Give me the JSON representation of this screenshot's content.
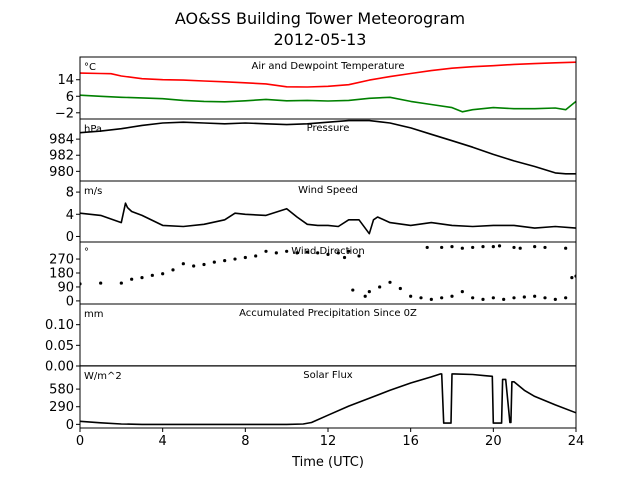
{
  "figure": {
    "title": "AO&SS Building Tower Meteorogram",
    "subtitle": "2012-05-13",
    "xlabel": "Time (UTC)",
    "xticks": [
      0,
      4,
      8,
      12,
      16,
      20,
      24
    ]
  },
  "chart_data": [
    {
      "type": "line",
      "title": "Air and Dewpoint Temperature",
      "unit": "°C",
      "xlim": [
        0,
        24
      ],
      "ylim": [
        -5,
        25
      ],
      "yticks": [
        -2,
        6,
        14
      ],
      "series": [
        {
          "color": "#ff0000",
          "x": [
            0,
            1,
            1.5,
            2,
            3,
            4,
            5,
            6,
            7,
            8,
            9,
            10,
            11,
            12,
            13,
            14,
            15,
            16,
            17,
            18,
            19,
            20,
            21,
            22,
            23,
            24
          ],
          "values": [
            17.2,
            17.0,
            16.9,
            15.8,
            14.5,
            14.0,
            13.8,
            13.4,
            13.0,
            12.5,
            12.0,
            10.6,
            10.5,
            10.8,
            11.6,
            13.8,
            15.5,
            17.0,
            18.4,
            19.6,
            20.3,
            20.8,
            21.4,
            21.8,
            22.2,
            22.5
          ]
        },
        {
          "color": "#008000",
          "x": [
            0,
            1,
            2,
            3,
            4,
            5,
            6,
            7,
            8,
            9,
            10,
            11,
            12,
            13,
            14,
            15,
            16,
            17,
            18,
            18.5,
            19,
            20,
            21,
            22,
            23,
            23.5,
            24
          ],
          "values": [
            6.5,
            6.0,
            5.5,
            5.2,
            4.8,
            4.0,
            3.5,
            3.3,
            3.8,
            4.5,
            3.8,
            4.0,
            3.7,
            4.0,
            5.0,
            5.5,
            3.5,
            2.0,
            0.5,
            -1.5,
            -0.5,
            0.5,
            0.0,
            0.0,
            0.3,
            -0.5,
            3.5
          ]
        }
      ]
    },
    {
      "type": "line",
      "title": "Pressure",
      "unit": "hPa",
      "xlim": [
        0,
        24
      ],
      "ylim": [
        978.8,
        986.5
      ],
      "yticks": [
        980,
        982,
        984
      ],
      "series": [
        {
          "color": "#000000",
          "x": [
            0,
            1,
            2,
            3,
            4,
            5,
            6,
            7,
            8,
            9,
            10,
            11,
            12,
            13,
            14,
            15,
            16,
            17,
            18,
            19,
            20,
            21,
            22,
            23,
            23.5,
            24
          ],
          "values": [
            984.8,
            985.0,
            985.3,
            985.7,
            986.0,
            986.1,
            986.0,
            985.9,
            986.0,
            985.9,
            985.8,
            985.9,
            986.1,
            986.3,
            986.3,
            986.0,
            985.4,
            984.6,
            983.8,
            983.0,
            982.1,
            981.3,
            980.6,
            979.8,
            979.7,
            979.7
          ]
        }
      ]
    },
    {
      "type": "line",
      "title": "Wind Speed",
      "unit": "m/s",
      "xlim": [
        0,
        24
      ],
      "ylim": [
        -1,
        10
      ],
      "yticks": [
        0,
        4,
        8
      ],
      "series": [
        {
          "color": "#000000",
          "x": [
            0,
            1,
            2,
            2.2,
            2.3,
            2.5,
            3,
            4,
            5,
            6,
            7,
            7.5,
            8,
            9,
            10,
            10.5,
            11,
            11.5,
            12,
            12.5,
            13,
            13.5,
            14,
            14.2,
            14.4,
            15,
            16,
            17,
            18,
            19,
            20,
            21,
            22,
            23,
            24
          ],
          "values": [
            4.2,
            3.8,
            2.5,
            6.0,
            5.2,
            4.5,
            3.8,
            2.0,
            1.8,
            2.2,
            3.0,
            4.2,
            4.0,
            3.8,
            5.0,
            3.5,
            2.2,
            2.0,
            2.0,
            1.8,
            3.0,
            3.0,
            0.5,
            3.0,
            3.5,
            2.5,
            2.0,
            2.5,
            2.0,
            1.8,
            2.0,
            2.0,
            1.5,
            1.8,
            1.5
          ]
        }
      ]
    },
    {
      "type": "scatter",
      "title": "Wind Direction",
      "unit": "°",
      "xlim": [
        0,
        24
      ],
      "ylim": [
        -20,
        380
      ],
      "yticks": [
        0,
        90,
        180,
        270
      ],
      "series": [
        {
          "color": "#000000",
          "x": [
            0,
            1,
            2,
            2.5,
            3,
            3.5,
            4,
            4.5,
            5,
            5.5,
            6,
            6.5,
            7,
            7.5,
            8,
            8.5,
            9,
            9.5,
            10,
            10.5,
            11,
            11.5,
            12,
            12.5,
            12.8,
            13,
            13.2,
            13.5,
            13.8,
            14,
            14.5,
            15,
            15.5,
            16,
            16.5,
            17,
            17.5,
            18,
            18.5,
            19,
            19.5,
            20,
            20.5,
            21,
            21.5,
            22,
            22.5,
            23,
            23.5,
            23.8,
            24
          ],
          "values": [
            110,
            115,
            115,
            140,
            150,
            165,
            175,
            200,
            240,
            225,
            235,
            250,
            260,
            270,
            280,
            290,
            320,
            310,
            320,
            310,
            315,
            310,
            300,
            310,
            280,
            320,
            70,
            290,
            30,
            60,
            90,
            120,
            80,
            30,
            20,
            10,
            20,
            30,
            60,
            20,
            10,
            20,
            10,
            20,
            25,
            30,
            20,
            10,
            20,
            150,
            160
          ]
        },
        {
          "color": "#000000",
          "x": [
            16.8,
            17.5,
            18.0,
            18.5,
            19.0,
            19.5,
            20.0,
            20.3,
            21.0,
            21.3,
            22.0,
            22.5,
            23.5
          ],
          "values": [
            345,
            345,
            350,
            340,
            345,
            350,
            350,
            355,
            345,
            340,
            350,
            345,
            340
          ]
        }
      ]
    },
    {
      "type": "line",
      "title": "Accumulated Precipitation Since 0Z",
      "unit": "mm",
      "xlim": [
        0,
        24
      ],
      "ylim": [
        0,
        0.15
      ],
      "yticks": [
        0.0,
        0.05,
        0.1
      ],
      "ytick_labels": [
        "0.00",
        "0.05",
        "0.10"
      ],
      "series": [
        {
          "color": "#000000",
          "x": [
            0,
            24
          ],
          "values": [
            0,
            0
          ]
        }
      ]
    },
    {
      "type": "line",
      "title": "Solar Flux",
      "unit": "W/m^2",
      "xlim": [
        0,
        24
      ],
      "ylim": [
        -60,
        960
      ],
      "yticks": [
        0,
        290,
        580
      ],
      "series": [
        {
          "color": "#000000",
          "x": [
            0,
            1,
            2,
            3,
            5,
            8,
            10,
            10.8,
            11.2,
            12,
            13,
            14,
            15,
            16,
            17,
            17.45,
            17.5,
            17.6,
            17.95,
            18,
            18.1,
            19,
            19.6,
            19.95,
            20,
            20.1,
            20.4,
            20.45,
            20.5,
            20.6,
            20.8,
            20.85,
            20.9,
            21.0,
            21.5,
            22,
            23,
            24
          ],
          "values": [
            50,
            25,
            5,
            0,
            0,
            0,
            0,
            5,
            30,
            150,
            300,
            430,
            560,
            680,
            780,
            830,
            830,
            20,
            20,
            830,
            830,
            820,
            800,
            790,
            20,
            20,
            20,
            740,
            740,
            740,
            30,
            30,
            700,
            700,
            560,
            460,
            320,
            190
          ]
        }
      ]
    }
  ]
}
